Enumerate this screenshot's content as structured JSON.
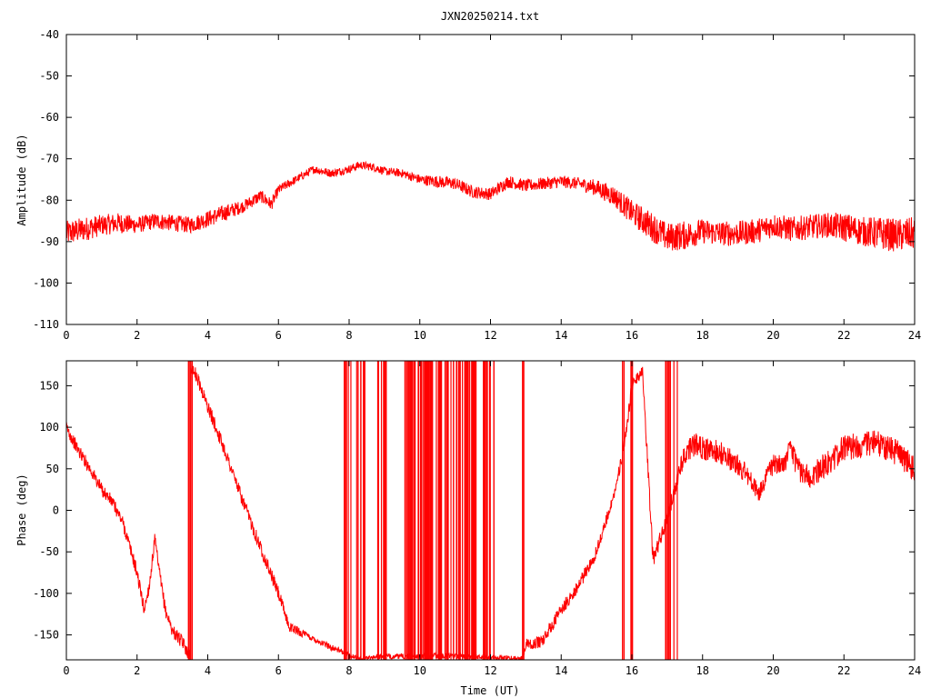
{
  "title": "JXN20250214.txt",
  "colors": {
    "trace": "#ff0000",
    "frame": "#000000",
    "background": "#ffffff"
  },
  "chart_data": [
    {
      "type": "line",
      "ylabel": "Amplitude (dB)",
      "xlabel": "",
      "xlim": [
        0,
        24
      ],
      "ylim": [
        -110,
        -40
      ],
      "xticks": [
        "0",
        "2",
        "4",
        "6",
        "8",
        "10",
        "12",
        "14",
        "16",
        "18",
        "20",
        "22",
        "24"
      ],
      "yticks": [
        "-40",
        "-50",
        "-60",
        "-70",
        "-80",
        "-90",
        "-100",
        "-110"
      ],
      "grid": false,
      "legend": "none",
      "series": [
        {
          "x": [
            0,
            0.5,
            1,
            1.5,
            2,
            2.5,
            3,
            3.5,
            4,
            4.5,
            5,
            5.5,
            5.8,
            6,
            6.5,
            7,
            7.5,
            8,
            8.3,
            8.7,
            9,
            9.5,
            10,
            10.5,
            11,
            11.5,
            12,
            12.5,
            13,
            13.5,
            14,
            14.5,
            15,
            15.5,
            16,
            16.5,
            17,
            17.5,
            18,
            18.5,
            19,
            19.5,
            20,
            20.5,
            21,
            21.5,
            22,
            22.5,
            23,
            23.5,
            24
          ],
          "y": [
            -88,
            -87,
            -86,
            -85.5,
            -86,
            -85,
            -85.5,
            -86,
            -84.5,
            -83,
            -81.5,
            -79,
            -81,
            -77.5,
            -75,
            -72.5,
            -73.5,
            -72.5,
            -71.5,
            -72,
            -73,
            -73.5,
            -75,
            -75.5,
            -76,
            -78,
            -78.5,
            -75.5,
            -76.5,
            -76,
            -75.5,
            -76,
            -77,
            -79,
            -83,
            -86,
            -89,
            -88.5,
            -87.5,
            -88,
            -88,
            -87.5,
            -86,
            -87,
            -86.5,
            -86,
            -86.5,
            -87.5,
            -88,
            -88.5,
            -88
          ],
          "noise": [
            3,
            3,
            2.5,
            2.5,
            2,
            2,
            2,
            2,
            2,
            2,
            1.5,
            1.5,
            1.5,
            1.2,
            1,
            1,
            1,
            1,
            1,
            1,
            1,
            1,
            1.2,
            1.5,
            1.5,
            1.5,
            1.5,
            1.5,
            1.5,
            1.5,
            1.5,
            1.5,
            2,
            2.5,
            3,
            3.5,
            3.5,
            3.5,
            3,
            3,
            3,
            3,
            3,
            3,
            3,
            3,
            3.5,
            3.5,
            4,
            4,
            4
          ]
        }
      ]
    },
    {
      "type": "line",
      "ylabel": "Phase (deg)",
      "xlabel": "Time (UT)",
      "xlim": [
        0,
        24
      ],
      "ylim": [
        -180,
        180
      ],
      "xticks": [
        "0",
        "2",
        "4",
        "6",
        "8",
        "10",
        "12",
        "14",
        "16",
        "18",
        "20",
        "22",
        "24"
      ],
      "yticks": [
        "150",
        "100",
        "50",
        "0",
        "-50",
        "-100",
        "-150"
      ],
      "grid": false,
      "legend": "none",
      "series": [
        {
          "x": [
            0,
            0.3,
            0.6,
            1,
            1.3,
            1.6,
            2,
            2.2,
            2.35,
            2.5,
            2.65,
            2.8,
            3,
            3.3,
            3.5,
            3.52,
            3.7,
            4,
            4.5,
            5,
            5.5,
            6,
            6.3,
            7,
            7.5,
            7.9,
            8.2,
            8.5,
            8.8,
            9.5,
            10,
            10.5,
            11,
            11.5,
            12,
            12.3,
            12.6,
            12.9,
            13,
            13.3,
            13.5,
            14,
            14.5,
            15,
            15.5,
            15.8,
            16,
            16.3,
            16.6,
            17,
            17.3,
            17.5,
            17.8,
            18,
            18.5,
            19,
            19.3,
            19.6,
            19.8,
            20,
            20.3,
            20.5,
            20.7,
            21,
            21.5,
            22,
            22.5,
            23,
            23.5,
            24
          ],
          "y": [
            100,
            75,
            55,
            25,
            10,
            -15,
            -75,
            -120,
            -90,
            -35,
            -80,
            -120,
            -145,
            -160,
            -175,
            175,
            160,
            125,
            70,
            10,
            -45,
            -100,
            -140,
            -155,
            -165,
            -172,
            -178,
            -178,
            -176,
            -176,
            -175,
            -175,
            -175,
            -176,
            -177,
            -178,
            -178,
            -178,
            -160,
            -160,
            -155,
            -120,
            -90,
            -50,
            20,
            80,
            150,
            170,
            -60,
            -10,
            40,
            70,
            80,
            75,
            70,
            55,
            40,
            20,
            40,
            55,
            55,
            75,
            50,
            40,
            55,
            75,
            80,
            80,
            70,
            50
          ],
          "noise": [
            8,
            8,
            8,
            8,
            8,
            8,
            8,
            8,
            8,
            8,
            8,
            8,
            8,
            8,
            8,
            8,
            8,
            8,
            8,
            8,
            8,
            8,
            6,
            4,
            4,
            3,
            3,
            3,
            3,
            3,
            3,
            3,
            3,
            3,
            3,
            3,
            3,
            3,
            6,
            8,
            8,
            8,
            8,
            8,
            6,
            8,
            8,
            8,
            10,
            10,
            10,
            14,
            14,
            14,
            14,
            14,
            12,
            10,
            10,
            12,
            12,
            14,
            14,
            14,
            16,
            16,
            16,
            16,
            16,
            16
          ]
        }
      ]
    }
  ]
}
